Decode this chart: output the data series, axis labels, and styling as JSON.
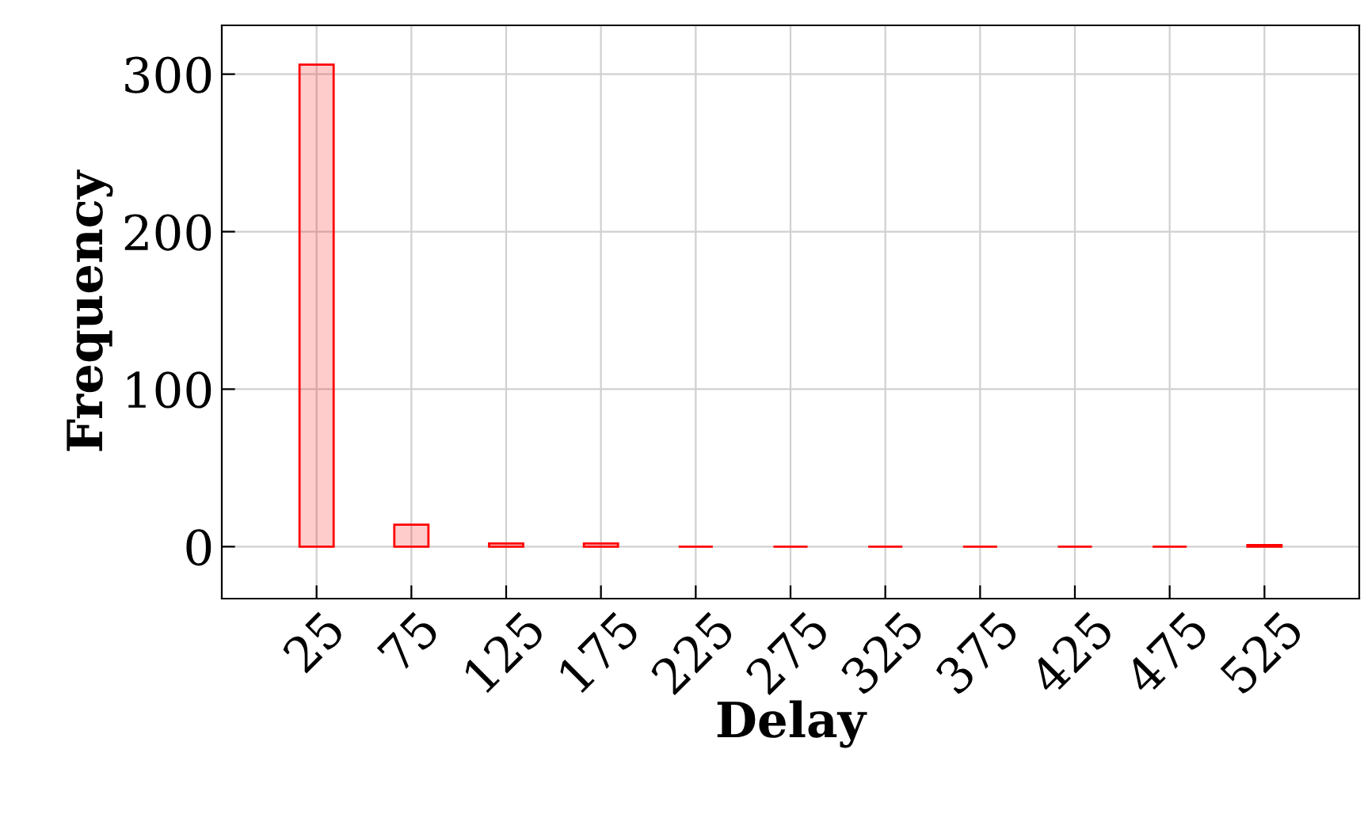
{
  "chart_data": {
    "type": "bar",
    "xlabel": "Delay",
    "ylabel": "Frequency",
    "x": [
      25,
      75,
      125,
      175,
      225,
      275,
      325,
      375,
      425,
      475,
      525
    ],
    "series": [
      {
        "color": "#ff0000",
        "values": [
          306,
          14,
          2,
          2,
          0,
          0,
          0,
          0,
          0,
          0,
          1
        ]
      }
    ],
    "xlim": [
      -25,
      575
    ],
    "xticks": [
      25,
      75,
      125,
      175,
      225,
      275,
      325,
      375,
      425,
      475,
      525
    ],
    "ylim": [
      -33,
      331
    ],
    "yticks": [
      0,
      100,
      200,
      300
    ],
    "grid": true
  }
}
